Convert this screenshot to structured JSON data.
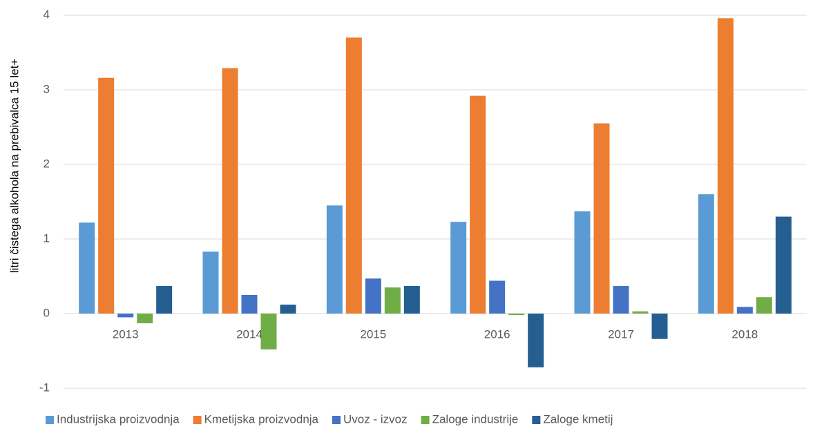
{
  "chart_data": {
    "type": "bar",
    "y_axis_label": "litri čistega alkohola na prebivalca 15 let+",
    "categories": [
      "2013",
      "2014",
      "2015",
      "2016",
      "2017",
      "2018"
    ],
    "series": [
      {
        "name": "Industrijska proizvodnja",
        "color": "#5b9bd5",
        "values": [
          1.22,
          0.83,
          1.45,
          1.23,
          1.37,
          1.6
        ]
      },
      {
        "name": "Kmetijska proizvodnja",
        "color": "#ed7d31",
        "values": [
          3.16,
          3.29,
          3.7,
          2.92,
          2.55,
          3.96
        ]
      },
      {
        "name": "Uvoz - izvoz",
        "color": "#4472c4",
        "values": [
          -0.05,
          0.25,
          0.47,
          0.44,
          0.37,
          0.09
        ]
      },
      {
        "name": "Zaloge industrije",
        "color": "#70ad47",
        "values": [
          -0.13,
          -0.48,
          0.35,
          -0.02,
          0.03,
          0.22
        ]
      },
      {
        "name": "Zaloge kmetij",
        "color": "#255e91",
        "values": [
          0.37,
          0.12,
          0.37,
          -0.72,
          -0.34,
          1.3
        ]
      }
    ],
    "ylim": [
      -1,
      4
    ],
    "yticks": [
      -1,
      0,
      1,
      2,
      3,
      4
    ],
    "grid": true,
    "legend": "bottom"
  }
}
